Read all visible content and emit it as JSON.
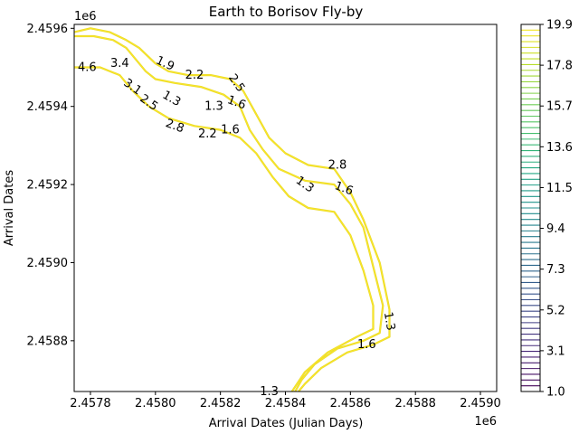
{
  "chart_data": {
    "type": "contour",
    "title": "Earth to Borisov Fly-by",
    "xlabel": "Arrival Dates (Julian Days)",
    "ylabel": "Arrival Dates",
    "x_offset_label": "1e6",
    "y_offset_label": "1e6",
    "xlim": [
      2.45775,
      2.45905
    ],
    "ylim": [
      2.45867,
      2.45961
    ],
    "x_ticks": [
      {
        "value": 2.4578,
        "label": "2.4578"
      },
      {
        "value": 2.458,
        "label": "2.4580"
      },
      {
        "value": 2.4582,
        "label": "2.4582"
      },
      {
        "value": 2.4584,
        "label": "2.4584"
      },
      {
        "value": 2.4586,
        "label": "2.4586"
      },
      {
        "value": 2.4588,
        "label": "2.4588"
      },
      {
        "value": 2.459,
        "label": "2.4590"
      }
    ],
    "y_ticks": [
      {
        "value": 2.4588,
        "label": "2.4588"
      },
      {
        "value": 2.459,
        "label": "2.4590"
      },
      {
        "value": 2.4592,
        "label": "2.4592"
      },
      {
        "value": 2.4594,
        "label": "2.4594"
      },
      {
        "value": 2.4596,
        "label": "2.4596"
      }
    ],
    "colorbar": {
      "min": 1.0,
      "max": 19.9,
      "colormap": "viridis",
      "tick_labels": [
        {
          "value": 1.0,
          "label": "1.0"
        },
        {
          "value": 3.1,
          "label": "3.1"
        },
        {
          "value": 5.2,
          "label": "5.2"
        },
        {
          "value": 7.3,
          "label": "7.3"
        },
        {
          "value": 9.4,
          "label": "9.4"
        },
        {
          "value": 11.5,
          "label": "11.5"
        },
        {
          "value": 13.6,
          "label": "13.6"
        },
        {
          "value": 15.7,
          "label": "15.7"
        },
        {
          "value": 17.8,
          "label": "17.8"
        },
        {
          "value": 19.9,
          "label": "19.9"
        }
      ]
    },
    "contour_paths": [
      {
        "name": "outer",
        "points": [
          [
            2.45775,
            2.45959
          ],
          [
            2.4578,
            2.4596
          ],
          [
            2.45786,
            2.45959
          ],
          [
            2.45791,
            2.45957
          ],
          [
            2.45795,
            2.45955
          ],
          [
            2.458,
            2.45951
          ],
          [
            2.45804,
            2.45949
          ],
          [
            2.4581,
            2.45948
          ],
          [
            2.45817,
            2.45948
          ],
          [
            2.45823,
            2.45947
          ],
          [
            2.45827,
            2.45944
          ],
          [
            2.45831,
            2.45938
          ],
          [
            2.45835,
            2.45932
          ],
          [
            2.4584,
            2.45928
          ],
          [
            2.45847,
            2.45925
          ],
          [
            2.45855,
            2.45924
          ],
          [
            2.4586,
            2.45918
          ],
          [
            2.45864,
            2.45911
          ],
          [
            2.45869,
            2.459
          ],
          [
            2.45872,
            2.45888
          ],
          [
            2.45872,
            2.45881
          ],
          [
            2.45867,
            2.45879
          ],
          [
            2.45859,
            2.45877
          ],
          [
            2.45851,
            2.45873
          ],
          [
            2.45846,
            2.45869
          ],
          [
            2.45844,
            2.45867
          ]
        ]
      },
      {
        "name": "middle",
        "points": [
          [
            2.45775,
            2.45958
          ],
          [
            2.45781,
            2.45958
          ],
          [
            2.45787,
            2.45957
          ],
          [
            2.45791,
            2.45955
          ],
          [
            2.45794,
            2.45952
          ],
          [
            2.45797,
            2.45949
          ],
          [
            2.458,
            2.45947
          ],
          [
            2.45806,
            2.45946
          ],
          [
            2.45814,
            2.45945
          ],
          [
            2.45821,
            2.45943
          ],
          [
            2.45826,
            2.4594
          ],
          [
            2.45829,
            2.45934
          ],
          [
            2.45833,
            2.45929
          ],
          [
            2.45838,
            2.45924
          ],
          [
            2.45846,
            2.45921
          ],
          [
            2.45855,
            2.4592
          ],
          [
            2.4586,
            2.45915
          ],
          [
            2.45864,
            2.45909
          ],
          [
            2.45867,
            2.45899
          ],
          [
            2.4587,
            2.45889
          ],
          [
            2.45869,
            2.45882
          ],
          [
            2.45864,
            2.4588
          ],
          [
            2.45856,
            2.45878
          ],
          [
            2.45849,
            2.45874
          ],
          [
            2.45845,
            2.4587
          ],
          [
            2.45843,
            2.45867
          ]
        ]
      },
      {
        "name": "inner",
        "points": [
          [
            2.45775,
            2.4595
          ],
          [
            2.45783,
            2.4595
          ],
          [
            2.45789,
            2.45948
          ],
          [
            2.45793,
            2.45944
          ],
          [
            2.45798,
            2.4594
          ],
          [
            2.45804,
            2.45937
          ],
          [
            2.45812,
            2.45935
          ],
          [
            2.4582,
            2.45934
          ],
          [
            2.45826,
            2.45932
          ],
          [
            2.45831,
            2.45928
          ],
          [
            2.45836,
            2.45922
          ],
          [
            2.45841,
            2.45917
          ],
          [
            2.45847,
            2.45914
          ],
          [
            2.45855,
            2.45913
          ],
          [
            2.4586,
            2.45907
          ],
          [
            2.45864,
            2.45898
          ],
          [
            2.45867,
            2.45889
          ],
          [
            2.45867,
            2.45883
          ],
          [
            2.45862,
            2.45881
          ],
          [
            2.45853,
            2.45877
          ],
          [
            2.45846,
            2.45872
          ],
          [
            2.45842,
            2.45867
          ]
        ]
      }
    ],
    "contour_labels": [
      {
        "text": "1.9",
        "x": 2.45803,
        "y": 2.45951,
        "angle": 25
      },
      {
        "text": "2.2",
        "x": 2.45812,
        "y": 2.45948,
        "angle": 0
      },
      {
        "text": "2.5",
        "x": 2.45825,
        "y": 2.45946,
        "angle": 55
      },
      {
        "text": "1.6",
        "x": 2.45825,
        "y": 2.45941,
        "angle": 20
      },
      {
        "text": "1.3",
        "x": 2.45805,
        "y": 2.45942,
        "angle": 30
      },
      {
        "text": "1.3",
        "x": 2.45818,
        "y": 2.4594,
        "angle": 0
      },
      {
        "text": "4.6",
        "x": 2.45779,
        "y": 2.4595,
        "angle": 0
      },
      {
        "text": "3.4",
        "x": 2.45789,
        "y": 2.45951,
        "angle": 0
      },
      {
        "text": "3.1",
        "x": 2.45793,
        "y": 2.45945,
        "angle": 35
      },
      {
        "text": "2.5",
        "x": 2.45798,
        "y": 2.45941,
        "angle": 35
      },
      {
        "text": "2.8",
        "x": 2.45806,
        "y": 2.45935,
        "angle": 20
      },
      {
        "text": "2.2",
        "x": 2.45816,
        "y": 2.45933,
        "angle": 0
      },
      {
        "text": "1.6",
        "x": 2.45823,
        "y": 2.45934,
        "angle": 0
      },
      {
        "text": "2.8",
        "x": 2.45856,
        "y": 2.45925,
        "angle": 0
      },
      {
        "text": "1.3",
        "x": 2.45846,
        "y": 2.4592,
        "angle": 35
      },
      {
        "text": "1.6",
        "x": 2.45858,
        "y": 2.45919,
        "angle": 20
      },
      {
        "text": "1.3",
        "x": 2.45872,
        "y": 2.45885,
        "angle": 80
      },
      {
        "text": "1.6",
        "x": 2.45865,
        "y": 2.45879,
        "angle": 0
      },
      {
        "text": "1.3",
        "x": 2.45835,
        "y": 2.45867,
        "angle": 0
      }
    ]
  }
}
